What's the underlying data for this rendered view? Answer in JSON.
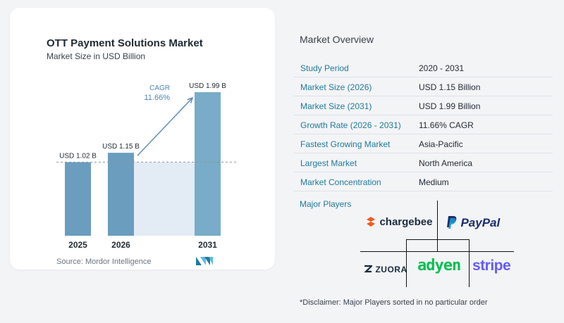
{
  "chart_data": {
    "type": "bar",
    "title": "OTT Payment Solutions Market",
    "subtitle": "Market Size in USD Billion",
    "categories": [
      "2025",
      "2026",
      "2031"
    ],
    "values": [
      1.02,
      1.15,
      1.99
    ],
    "data_labels": [
      "USD 1.02 B",
      "USD 1.15 B",
      "USD 1.99 B"
    ],
    "ylim": [
      0,
      2.1
    ],
    "cagr_label": "CAGR",
    "cagr_value": "11.66%",
    "colors": {
      "bar": "#6b9dbf",
      "bar_last": "#78acc8",
      "band": "#e3ecf4",
      "arrow": "#5f8fb5",
      "dash": "#8a96a3",
      "cagr_text": "#4f86b0"
    }
  },
  "source": "Source:  Mordor Intelligence",
  "overview": {
    "title": "Market Overview",
    "rows": [
      {
        "label": "Study Period",
        "value": "2020 - 2031"
      },
      {
        "label": "Market Size (2026)",
        "value": "USD 1.15 Billion"
      },
      {
        "label": "Market Size (2031)",
        "value": "USD 1.99 Billion"
      },
      {
        "label": "Growth Rate (2026 - 2031)",
        "value": "11.66% CAGR"
      },
      {
        "label": "Fastest Growing Market",
        "value": "Asia-Pacific"
      },
      {
        "label": "Largest Market",
        "value": "North America"
      },
      {
        "label": "Market Concentration",
        "value": "Medium"
      }
    ]
  },
  "players": {
    "title": "Major Players",
    "logos": [
      "chargebee",
      "PayPal",
      "ZUORA",
      "adyen",
      "stripe"
    ]
  },
  "disclaimer": "*Disclaimer: Major Players sorted in no particular order",
  "colors": {
    "accent": "#1f7a9c",
    "chargebee": "#f25a1d",
    "paypal_dark": "#1b2e6c",
    "paypal_light": "#179bd7",
    "adyen": "#0abf53",
    "stripe": "#635bff",
    "zuora": "#1a2b3c"
  }
}
